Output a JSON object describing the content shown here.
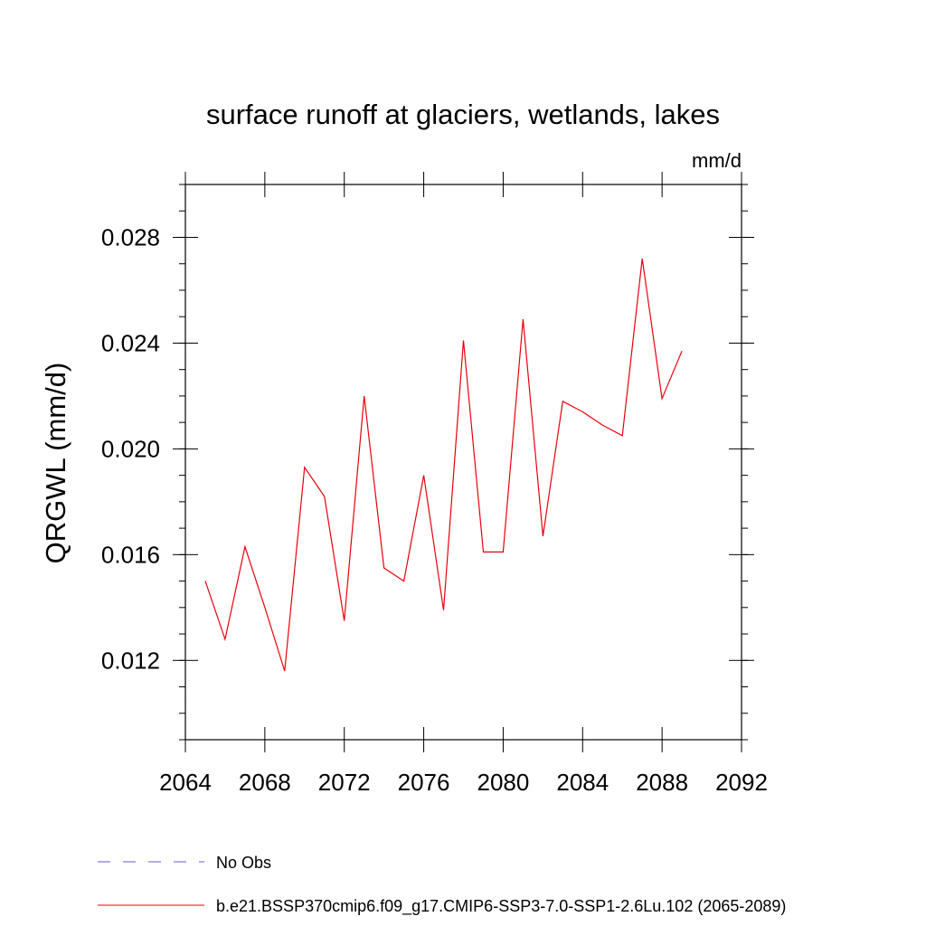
{
  "chart_data": {
    "type": "line",
    "title": "surface runoff at glaciers, wetlands, lakes",
    "units": "mm/d",
    "ylabel": "QRGWL  (mm/d)",
    "xlabel": "",
    "xlim": [
      2064,
      2092
    ],
    "ylim": [
      0.009,
      0.03
    ],
    "x_ticks": [
      2064,
      2068,
      2072,
      2076,
      2080,
      2084,
      2088,
      2092
    ],
    "x_tick_labels": [
      "2064",
      "2068",
      "2072",
      "2076",
      "2080",
      "2084",
      "2088",
      "2092"
    ],
    "y_ticks": [
      0.012,
      0.016,
      0.02,
      0.024,
      0.028
    ],
    "y_tick_labels": [
      "0.012",
      "0.016",
      "0.020",
      "0.024",
      "0.028"
    ],
    "grid": false,
    "legend_position": "bottom-left",
    "legend": [
      {
        "label": "No Obs",
        "color": "#6a5acd",
        "style": "dashed"
      },
      {
        "label": "b.e21.BSSP370cmip6.f09_g17.CMIP6-SSP3-7.0-SSP1-2.6Lu.102 (2065-2089)",
        "color": "#e8000b",
        "style": "solid"
      }
    ],
    "series": [
      {
        "color": "#e8000b",
        "x": [
          2065,
          2066,
          2067,
          2068,
          2069,
          2070,
          2071,
          2072,
          2073,
          2074,
          2075,
          2076,
          2077,
          2078,
          2079,
          2080,
          2081,
          2082,
          2083,
          2084,
          2085,
          2086,
          2087,
          2088,
          2089
        ],
        "values": [
          0.015,
          0.0128,
          0.0163,
          0.014,
          0.0116,
          0.0193,
          0.0182,
          0.0135,
          0.022,
          0.0155,
          0.015,
          0.019,
          0.0139,
          0.0241,
          0.0161,
          0.0161,
          0.0249,
          0.0167,
          0.0218,
          0.0214,
          0.0209,
          0.0205,
          0.0272,
          0.0219,
          0.0237
        ]
      }
    ]
  }
}
